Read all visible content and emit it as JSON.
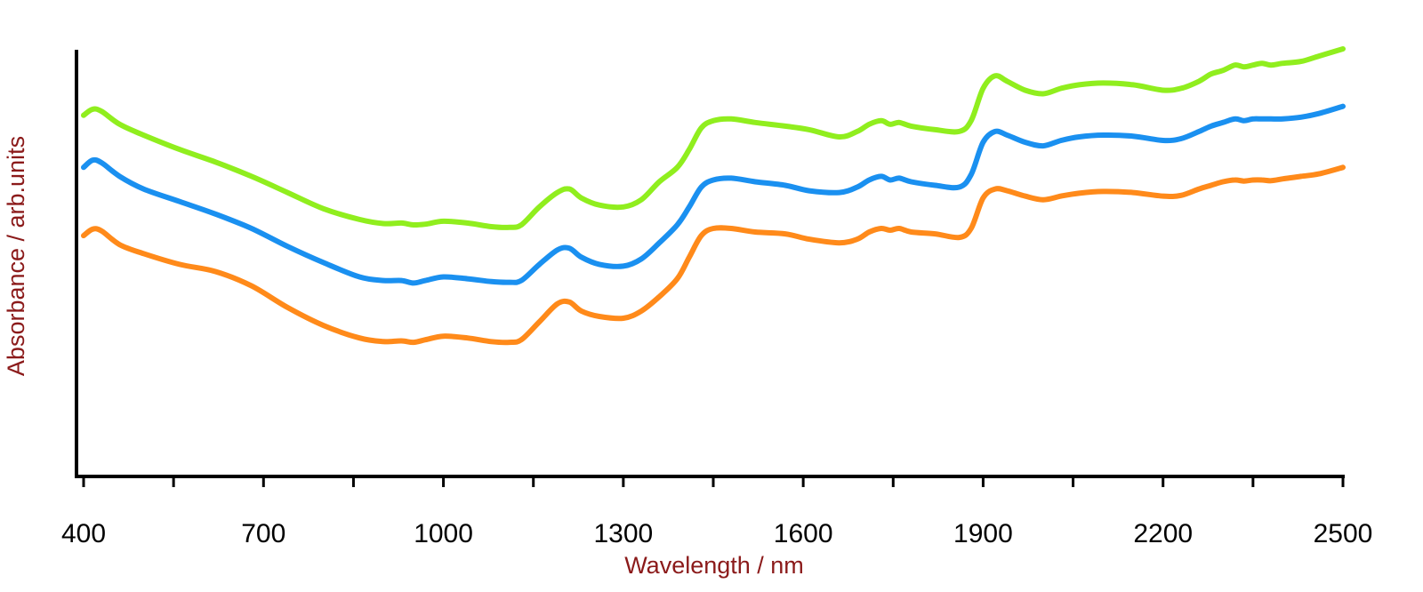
{
  "chart_data": {
    "type": "line",
    "xlabel": "Wavelength / nm",
    "ylabel": "Absorbance / arb.units",
    "xlim": [
      400,
      2500
    ],
    "ylim": [
      0,
      1
    ],
    "x_ticks": [
      400,
      700,
      1000,
      1300,
      1600,
      1900,
      2200,
      2500
    ],
    "x_tick_labels": [
      "400",
      "700",
      "1000",
      "1300",
      "1600",
      "1900",
      "2200",
      "2500"
    ],
    "minor_x_ticks": [
      550,
      850,
      1150,
      1450,
      1750,
      2050,
      2350
    ],
    "y_ticks_shown": false,
    "grid": false,
    "colors": {
      "axis": "#000000",
      "axis_title": "#8b1a1a"
    },
    "series": [
      {
        "color": "#90ee1e",
        "x": [
          400,
          415,
          430,
          460,
          500,
          560,
          620,
          680,
          740,
          800,
          860,
          900,
          930,
          950,
          970,
          1000,
          1040,
          1080,
          1110,
          1130,
          1160,
          1190,
          1210,
          1230,
          1260,
          1300,
          1330,
          1360,
          1390,
          1410,
          1430,
          1450,
          1480,
          1520,
          1570,
          1610,
          1660,
          1690,
          1710,
          1730,
          1745,
          1760,
          1780,
          1820,
          1860,
          1880,
          1900,
          1920,
          1940,
          1970,
          2000,
          2030,
          2060,
          2100,
          2150,
          2200,
          2230,
          2260,
          2280,
          2300,
          2320,
          2335,
          2350,
          2365,
          2380,
          2400,
          2430,
          2460,
          2500
        ],
        "y": [
          0.815,
          0.832,
          0.826,
          0.79,
          0.76,
          0.72,
          0.685,
          0.645,
          0.6,
          0.555,
          0.525,
          0.5135,
          0.515,
          0.51,
          0.512,
          0.52,
          0.515,
          0.505,
          0.503,
          0.51,
          0.56,
          0.6,
          0.61,
          0.585,
          0.565,
          0.56,
          0.58,
          0.63,
          0.67,
          0.72,
          0.78,
          0.8,
          0.805,
          0.795,
          0.785,
          0.775,
          0.755,
          0.77,
          0.79,
          0.8,
          0.79,
          0.795,
          0.785,
          0.775,
          0.77,
          0.8,
          0.89,
          0.925,
          0.91,
          0.885,
          0.875,
          0.89,
          0.9,
          0.905,
          0.9,
          0.885,
          0.89,
          0.91,
          0.93,
          0.94,
          0.955,
          0.95,
          0.955,
          0.96,
          0.955,
          0.96,
          0.965,
          0.98,
          1.0
        ]
      },
      {
        "color": "#1a90f0",
        "x": [
          400,
          415,
          430,
          460,
          500,
          560,
          620,
          680,
          740,
          800,
          860,
          900,
          930,
          950,
          970,
          1000,
          1040,
          1080,
          1110,
          1130,
          1160,
          1190,
          1210,
          1230,
          1260,
          1300,
          1330,
          1360,
          1390,
          1410,
          1430,
          1450,
          1480,
          1520,
          1570,
          1610,
          1660,
          1690,
          1710,
          1730,
          1745,
          1760,
          1780,
          1820,
          1860,
          1880,
          1900,
          1920,
          1940,
          1970,
          2000,
          2030,
          2060,
          2100,
          2150,
          2200,
          2230,
          2260,
          2280,
          2300,
          2320,
          2335,
          2350,
          2365,
          2380,
          2400,
          2430,
          2460,
          2500
        ],
        "y": [
          0.67,
          0.69,
          0.683,
          0.645,
          0.61,
          0.575,
          0.54,
          0.5,
          0.45,
          0.405,
          0.365,
          0.355,
          0.355,
          0.348,
          0.355,
          0.365,
          0.36,
          0.352,
          0.35,
          0.355,
          0.4,
          0.44,
          0.445,
          0.42,
          0.4,
          0.395,
          0.415,
          0.46,
          0.51,
          0.56,
          0.615,
          0.635,
          0.64,
          0.63,
          0.62,
          0.605,
          0.6,
          0.615,
          0.635,
          0.645,
          0.635,
          0.64,
          0.63,
          0.62,
          0.615,
          0.65,
          0.74,
          0.77,
          0.76,
          0.74,
          0.73,
          0.745,
          0.755,
          0.76,
          0.757,
          0.745,
          0.75,
          0.77,
          0.785,
          0.795,
          0.805,
          0.8,
          0.805,
          0.805,
          0.805,
          0.805,
          0.81,
          0.82,
          0.84
        ]
      },
      {
        "color": "#ff8a1a",
        "x": [
          400,
          415,
          430,
          460,
          500,
          560,
          620,
          680,
          740,
          800,
          860,
          900,
          930,
          950,
          970,
          1000,
          1040,
          1080,
          1110,
          1130,
          1160,
          1190,
          1210,
          1230,
          1260,
          1300,
          1330,
          1360,
          1390,
          1410,
          1430,
          1450,
          1480,
          1520,
          1570,
          1610,
          1660,
          1690,
          1710,
          1730,
          1745,
          1760,
          1780,
          1820,
          1860,
          1880,
          1900,
          1920,
          1940,
          1970,
          2000,
          2030,
          2060,
          2100,
          2150,
          2200,
          2230,
          2260,
          2280,
          2300,
          2320,
          2335,
          2350,
          2365,
          2380,
          2400,
          2430,
          2460,
          2500
        ],
        "y": [
          0.48,
          0.498,
          0.493,
          0.455,
          0.43,
          0.4,
          0.38,
          0.34,
          0.28,
          0.23,
          0.195,
          0.185,
          0.187,
          0.183,
          0.19,
          0.2,
          0.195,
          0.185,
          0.183,
          0.19,
          0.24,
          0.29,
          0.295,
          0.27,
          0.255,
          0.25,
          0.27,
          0.31,
          0.36,
          0.42,
          0.48,
          0.5,
          0.5,
          0.49,
          0.485,
          0.47,
          0.46,
          0.47,
          0.49,
          0.5,
          0.495,
          0.5,
          0.49,
          0.485,
          0.475,
          0.5,
          0.585,
          0.61,
          0.605,
          0.59,
          0.58,
          0.59,
          0.598,
          0.603,
          0.6,
          0.59,
          0.592,
          0.61,
          0.62,
          0.63,
          0.635,
          0.632,
          0.635,
          0.635,
          0.633,
          0.638,
          0.645,
          0.652,
          0.67
        ]
      }
    ]
  }
}
